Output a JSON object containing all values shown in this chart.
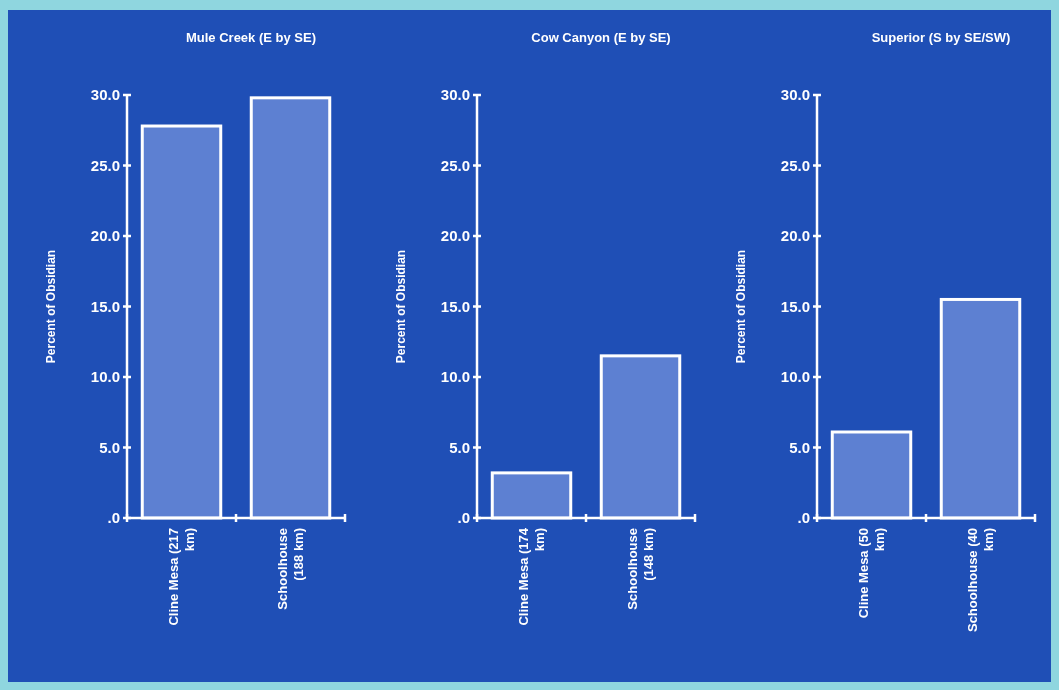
{
  "chart_data": [
    {
      "type": "bar",
      "title": "Mule Creek (E by SE)",
      "ylabel": "Percent of Obsidian",
      "categories": [
        "Cline Mesa (217 km)",
        "Schoolhouse (188 km)"
      ],
      "values": [
        27.8,
        29.8
      ],
      "color": "#5d80d2",
      "ylim": [
        0,
        30
      ],
      "yticks": [
        {
          "value": 0,
          "label": ".0"
        },
        {
          "value": 5,
          "label": "5.0"
        },
        {
          "value": 10,
          "label": "10.0"
        },
        {
          "value": 15,
          "label": "15.0"
        },
        {
          "value": 20,
          "label": "20.0"
        },
        {
          "value": 25,
          "label": "25.0"
        },
        {
          "value": 30,
          "label": "30.0"
        }
      ],
      "grid": false
    },
    {
      "type": "bar",
      "title": "Cow Canyon (E by SE)",
      "ylabel": "Percent of Obsidian",
      "categories": [
        "Cline Mesa (174 km)",
        "Schoolhouse (148 km)"
      ],
      "values": [
        3.2,
        11.5
      ],
      "color": "#5d80d2",
      "ylim": [
        0,
        30
      ],
      "yticks": [
        {
          "value": 0,
          "label": ".0"
        },
        {
          "value": 5,
          "label": "5.0"
        },
        {
          "value": 10,
          "label": "10.0"
        },
        {
          "value": 15,
          "label": "15.0"
        },
        {
          "value": 20,
          "label": "20.0"
        },
        {
          "value": 25,
          "label": "25.0"
        },
        {
          "value": 30,
          "label": "30.0"
        }
      ],
      "grid": false
    },
    {
      "type": "bar",
      "title": "Superior (S by SE/SW)",
      "ylabel": "Percent of Obsidian",
      "categories": [
        "Cline Mesa (50 km)",
        "Schoolhouse (40 km)"
      ],
      "values": [
        6.1,
        15.5
      ],
      "color": "#5d80d2",
      "ylim": [
        0,
        30
      ],
      "yticks": [
        {
          "value": 0,
          "label": ".0"
        },
        {
          "value": 5,
          "label": "5.0"
        },
        {
          "value": 10,
          "label": "10.0"
        },
        {
          "value": 15,
          "label": "15.0"
        },
        {
          "value": 20,
          "label": "20.0"
        },
        {
          "value": 25,
          "label": "25.0"
        },
        {
          "value": 30,
          "label": "30.0"
        }
      ],
      "grid": false
    }
  ]
}
